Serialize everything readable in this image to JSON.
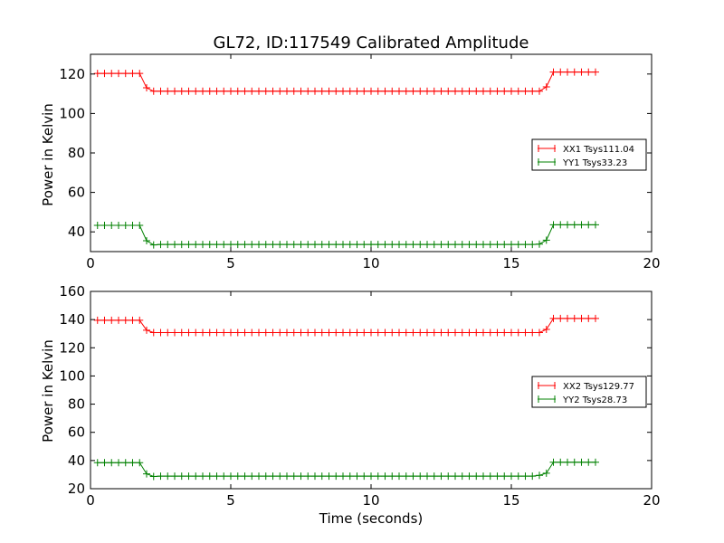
{
  "title": "GL72, ID:117549 Calibrated Amplitude",
  "xlabel": "Time (seconds)",
  "colors": {
    "xx": "#ff0000",
    "yy": "#008000",
    "axes": "#000000",
    "background": "#ffffff"
  },
  "chart_data": [
    {
      "type": "line",
      "ylabel": "Power in Kelvin",
      "xlim": [
        0,
        20
      ],
      "ylim": [
        30,
        130
      ],
      "xticks": [
        0,
        5,
        10,
        15,
        20
      ],
      "yticks": [
        40,
        60,
        80,
        100,
        120
      ],
      "grid": false,
      "legend_position": "center-right",
      "series": [
        {
          "name": "XX1 Tsys111.04",
          "color": "#ff0000",
          "marker": "+",
          "step": 0.25,
          "start": 0.25,
          "segments": [
            {
              "count": 7,
              "value": 120.3
            },
            {
              "count": 1,
              "value": 113.0
            },
            {
              "count": 56,
              "value": 111.3
            },
            {
              "count": 1,
              "value": 113.5
            },
            {
              "count": 7,
              "value": 121.0
            }
          ]
        },
        {
          "name": "YY1 Tsys33.23",
          "color": "#008000",
          "marker": "+",
          "step": 0.25,
          "start": 0.25,
          "segments": [
            {
              "count": 7,
              "value": 43.3
            },
            {
              "count": 1,
              "value": 35.5
            },
            {
              "count": 1,
              "value": 33.4
            },
            {
              "count": 54,
              "value": 33.6
            },
            {
              "count": 1,
              "value": 33.8
            },
            {
              "count": 1,
              "value": 35.8
            },
            {
              "count": 7,
              "value": 43.6
            }
          ]
        }
      ]
    },
    {
      "type": "line",
      "ylabel": "Power in Kelvin",
      "xlim": [
        0,
        20
      ],
      "ylim": [
        20,
        160
      ],
      "xticks": [
        0,
        5,
        10,
        15,
        20
      ],
      "yticks": [
        20,
        40,
        60,
        80,
        100,
        120,
        140,
        160
      ],
      "grid": false,
      "legend_position": "center-right",
      "series": [
        {
          "name": "XX2 Tsys129.77",
          "color": "#ff0000",
          "marker": "+",
          "step": 0.25,
          "start": 0.25,
          "segments": [
            {
              "count": 7,
              "value": 139.5
            },
            {
              "count": 1,
              "value": 132.5
            },
            {
              "count": 56,
              "value": 130.8
            },
            {
              "count": 1,
              "value": 133.0
            },
            {
              "count": 7,
              "value": 140.8
            }
          ]
        },
        {
          "name": "YY2 Tsys28.73",
          "color": "#008000",
          "marker": "+",
          "step": 0.25,
          "start": 0.25,
          "segments": [
            {
              "count": 7,
              "value": 38.5
            },
            {
              "count": 1,
              "value": 30.5
            },
            {
              "count": 1,
              "value": 28.7
            },
            {
              "count": 54,
              "value": 28.9
            },
            {
              "count": 1,
              "value": 29.5
            },
            {
              "count": 1,
              "value": 31.0
            },
            {
              "count": 7,
              "value": 38.8
            }
          ]
        }
      ]
    }
  ]
}
